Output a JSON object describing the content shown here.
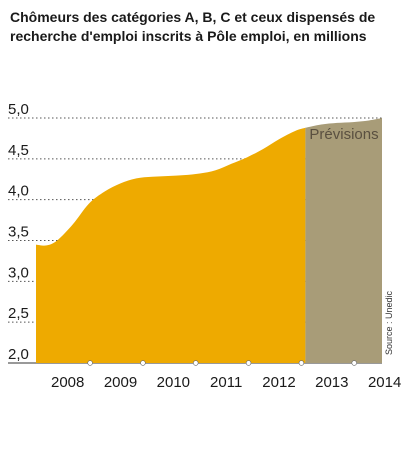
{
  "chart_data": {
    "type": "area",
    "title": "Chômeurs des catégories A, B, C et ceux dispensés de recherche d'emploi inscrits à Pôle emploi, en millions",
    "ylim": [
      2.0,
      5.0
    ],
    "yticks": [
      "2,0",
      "2,5",
      "3,0",
      "3,5",
      "4,0",
      "4,5",
      "5,0"
    ],
    "ytick_values": [
      2.0,
      2.5,
      3.0,
      3.5,
      4.0,
      4.5,
      5.0
    ],
    "categories": [
      "2008",
      "2009",
      "2010",
      "2011",
      "2012",
      "2013",
      "2014"
    ],
    "xlim": [
      2007.9,
      2014.45
    ],
    "series": [
      {
        "x": [
          2007.9,
          2008.1,
          2008.3,
          2008.6,
          2008.9,
          2009.2,
          2009.5,
          2009.8,
          2010.1,
          2010.4,
          2010.7,
          2011.0,
          2011.3,
          2011.6,
          2011.9,
          2012.2,
          2012.5,
          2012.8,
          2013.0
        ],
        "values": [
          3.45,
          3.44,
          3.5,
          3.7,
          3.95,
          4.1,
          4.2,
          4.26,
          4.28,
          4.29,
          4.3,
          4.32,
          4.36,
          4.44,
          4.52,
          4.62,
          4.74,
          4.84,
          4.88
        ]
      }
    ],
    "forecast": {
      "label": "Prévisions",
      "x": [
        2013.0,
        2013.3,
        2013.6,
        2013.9,
        2014.2,
        2014.45
      ],
      "values": [
        4.88,
        4.92,
        4.94,
        4.95,
        4.97,
        5.0
      ]
    },
    "grid": true,
    "source": "Source : Unedic"
  },
  "colors": {
    "actual": "#eeaa00",
    "forecast": "#a89c78",
    "grid": "#555555"
  }
}
